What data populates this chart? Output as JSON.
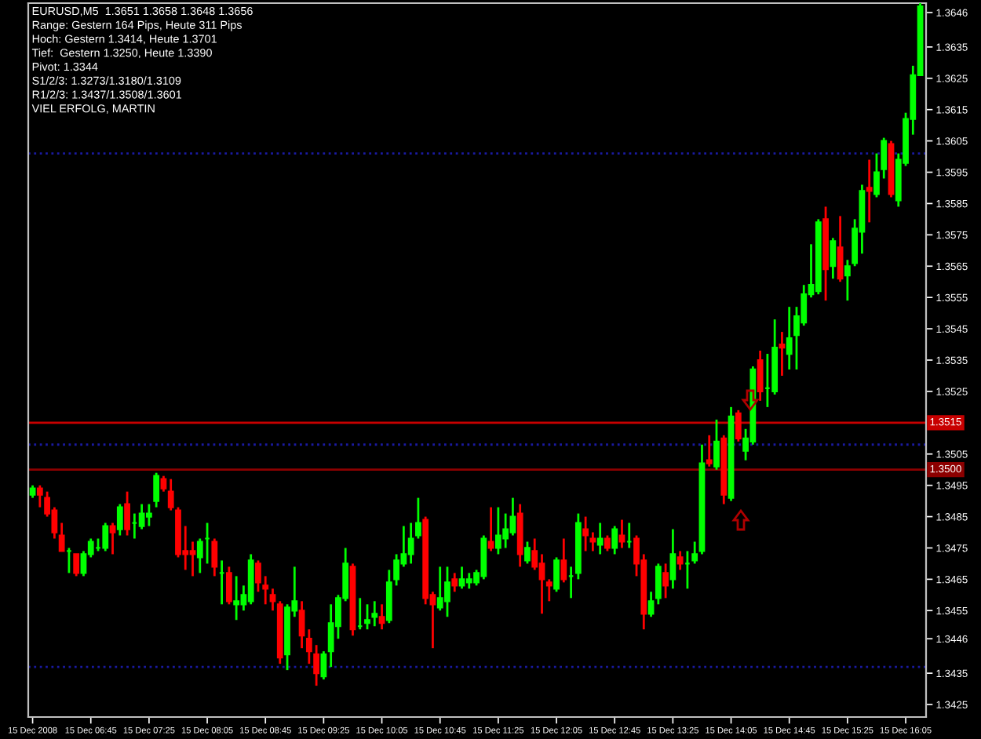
{
  "chart_data": {
    "type": "candlestick",
    "title": "EURUSD,M5  1.3651 1.3658 1.3648 1.3656",
    "annotations": [
      "Range: Gestern 164 Pips, Heute 311 Pips",
      "Hoch: Gestern 1.3414, Heute 1.3701",
      "Tief:  Gestern 1.3250, Heute 1.3390",
      "Pivot: 1.3344",
      "S1/2/3: 1.3273/1.3180/1.3109",
      "R1/2/3: 1.3437/1.3508/1.3601",
      "VIEL ERFOLG, MARTIN"
    ],
    "x": [
      "2008-12-15T06:05",
      "2008-12-15T06:10",
      "2008-12-15T06:15",
      "2008-12-15T06:20",
      "2008-12-15T06:25",
      "2008-12-15T06:30",
      "2008-12-15T06:35",
      "2008-12-15T06:40",
      "2008-12-15T06:45",
      "2008-12-15T06:50",
      "2008-12-15T06:55",
      "2008-12-15T07:00",
      "2008-12-15T07:05",
      "2008-12-15T07:10",
      "2008-12-15T07:15",
      "2008-12-15T07:20",
      "2008-12-15T07:25",
      "2008-12-15T07:30",
      "2008-12-15T07:35",
      "2008-12-15T07:40",
      "2008-12-15T07:45",
      "2008-12-15T07:50",
      "2008-12-15T07:55",
      "2008-12-15T08:00",
      "2008-12-15T08:05",
      "2008-12-15T08:10",
      "2008-12-15T08:15",
      "2008-12-15T08:20",
      "2008-12-15T08:25",
      "2008-12-15T08:30",
      "2008-12-15T08:35",
      "2008-12-15T08:40",
      "2008-12-15T08:45",
      "2008-12-15T08:50",
      "2008-12-15T08:55",
      "2008-12-15T09:00",
      "2008-12-15T09:05",
      "2008-12-15T09:10",
      "2008-12-15T09:15",
      "2008-12-15T09:20",
      "2008-12-15T09:25",
      "2008-12-15T09:30",
      "2008-12-15T09:35",
      "2008-12-15T09:40",
      "2008-12-15T09:45",
      "2008-12-15T09:50",
      "2008-12-15T09:55",
      "2008-12-15T10:00",
      "2008-12-15T10:05",
      "2008-12-15T10:10",
      "2008-12-15T10:15",
      "2008-12-15T10:20",
      "2008-12-15T10:25",
      "2008-12-15T10:30",
      "2008-12-15T10:35",
      "2008-12-15T10:40",
      "2008-12-15T10:45",
      "2008-12-15T10:50",
      "2008-12-15T10:55",
      "2008-12-15T11:00",
      "2008-12-15T11:05",
      "2008-12-15T11:10",
      "2008-12-15T11:15",
      "2008-12-15T11:20",
      "2008-12-15T11:25",
      "2008-12-15T11:30",
      "2008-12-15T11:35",
      "2008-12-15T11:40",
      "2008-12-15T11:45",
      "2008-12-15T11:50",
      "2008-12-15T11:55",
      "2008-12-15T12:00",
      "2008-12-15T12:05",
      "2008-12-15T12:10",
      "2008-12-15T12:15",
      "2008-12-15T12:20",
      "2008-12-15T12:25",
      "2008-12-15T12:30",
      "2008-12-15T12:35",
      "2008-12-15T12:40",
      "2008-12-15T12:45",
      "2008-12-15T12:50",
      "2008-12-15T12:55",
      "2008-12-15T13:00",
      "2008-12-15T13:05",
      "2008-12-15T13:10",
      "2008-12-15T13:15",
      "2008-12-15T13:20",
      "2008-12-15T13:25",
      "2008-12-15T13:30",
      "2008-12-15T13:35",
      "2008-12-15T13:40",
      "2008-12-15T13:45",
      "2008-12-15T13:50",
      "2008-12-15T13:55",
      "2008-12-15T14:00",
      "2008-12-15T14:05",
      "2008-12-15T14:10",
      "2008-12-15T14:15",
      "2008-12-15T14:20",
      "2008-12-15T14:25",
      "2008-12-15T14:30",
      "2008-12-15T14:35",
      "2008-12-15T14:40",
      "2008-12-15T14:45",
      "2008-12-15T14:50",
      "2008-12-15T14:55",
      "2008-12-15T15:00",
      "2008-12-15T15:05",
      "2008-12-15T15:10",
      "2008-12-15T15:15",
      "2008-12-15T15:20",
      "2008-12-15T15:25",
      "2008-12-15T15:30",
      "2008-12-15T15:35",
      "2008-12-15T15:40",
      "2008-12-15T15:45",
      "2008-12-15T15:50",
      "2008-12-15T15:55",
      "2008-12-15T16:00",
      "2008-12-15T16:05",
      "2008-12-15T16:10",
      "2008-12-15T16:15"
    ],
    "ohlc": [
      [
        1.3492,
        1.3495,
        1.3491,
        1.3494
      ],
      [
        1.3494,
        1.3495,
        1.3488,
        1.3492
      ],
      [
        1.3491,
        1.3493,
        1.3485,
        1.3486
      ],
      [
        1.3487,
        1.3488,
        1.3478,
        1.348
      ],
      [
        1.3479,
        1.3483,
        1.3474,
        1.3474
      ],
      [
        1.3474,
        1.3475,
        1.3467,
        1.3474
      ],
      [
        1.3473,
        1.3473,
        1.3466,
        1.3467
      ],
      [
        1.3467,
        1.3474,
        1.3466,
        1.3473
      ],
      [
        1.3473,
        1.3478,
        1.3472,
        1.3477
      ],
      [
        1.3475,
        1.3478,
        1.3474,
        1.3475
      ],
      [
        1.3475,
        1.3483,
        1.3474,
        1.3482
      ],
      [
        1.3482,
        1.3483,
        1.3473,
        1.348
      ],
      [
        1.3481,
        1.3489,
        1.3479,
        1.3488
      ],
      [
        1.3489,
        1.3493,
        1.3479,
        1.3481
      ],
      [
        1.3483,
        1.3486,
        1.3478,
        1.3483
      ],
      [
        1.3482,
        1.3489,
        1.3481,
        1.3486
      ],
      [
        1.3485,
        1.3489,
        1.3482,
        1.3486
      ],
      [
        1.349,
        1.3499,
        1.3488,
        1.3498
      ],
      [
        1.3497,
        1.3498,
        1.3493,
        1.3494
      ],
      [
        1.3493,
        1.3497,
        1.3487,
        1.3488
      ],
      [
        1.3487,
        1.3488,
        1.3472,
        1.3473
      ],
      [
        1.3474,
        1.3482,
        1.3468,
        1.3473
      ],
      [
        1.3474,
        1.3477,
        1.3466,
        1.3473
      ],
      [
        1.3472,
        1.3478,
        1.3467,
        1.3477
      ],
      [
        1.3478,
        1.3483,
        1.347,
        1.3478
      ],
      [
        1.3477,
        1.3478,
        1.3466,
        1.3469
      ],
      [
        1.3467,
        1.3471,
        1.3457,
        1.3467
      ],
      [
        1.3467,
        1.3469,
        1.3457,
        1.3458
      ],
      [
        1.3457,
        1.3466,
        1.3452,
        1.3458
      ],
      [
        1.3457,
        1.3463,
        1.3455,
        1.346
      ],
      [
        1.3458,
        1.3473,
        1.3457,
        1.3471
      ],
      [
        1.347,
        1.3471,
        1.3461,
        1.3464
      ],
      [
        1.3463,
        1.3466,
        1.3457,
        1.3462
      ],
      [
        1.346,
        1.3462,
        1.3455,
        1.3458
      ],
      [
        1.3457,
        1.3458,
        1.3438,
        1.344
      ],
      [
        1.3441,
        1.3457,
        1.3436,
        1.3456
      ],
      [
        1.3455,
        1.3469,
        1.3453,
        1.3458
      ],
      [
        1.3455,
        1.3458,
        1.3443,
        1.3447
      ],
      [
        1.3446,
        1.3449,
        1.3438,
        1.3442
      ],
      [
        1.3441,
        1.3444,
        1.3431,
        1.3435
      ],
      [
        1.3434,
        1.3442,
        1.3433,
        1.3441
      ],
      [
        1.3442,
        1.3457,
        1.3437,
        1.3451
      ],
      [
        1.345,
        1.346,
        1.3446,
        1.3459
      ],
      [
        1.3459,
        1.3475,
        1.3458,
        1.347
      ],
      [
        1.3469,
        1.347,
        1.3447,
        1.3449
      ],
      [
        1.345,
        1.3459,
        1.3449,
        1.345
      ],
      [
        1.3451,
        1.3457,
        1.3449,
        1.3452
      ],
      [
        1.3453,
        1.3458,
        1.345,
        1.3454
      ],
      [
        1.3453,
        1.3457,
        1.3449,
        1.3451
      ],
      [
        1.3452,
        1.3468,
        1.3451,
        1.3464
      ],
      [
        1.3465,
        1.3473,
        1.3463,
        1.3471
      ],
      [
        1.347,
        1.3482,
        1.3469,
        1.3473
      ],
      [
        1.3473,
        1.3483,
        1.347,
        1.3478
      ],
      [
        1.3479,
        1.3491,
        1.3478,
        1.3483
      ],
      [
        1.3484,
        1.3485,
        1.3457,
        1.3459
      ],
      [
        1.346,
        1.3461,
        1.3443,
        1.3457
      ],
      [
        1.3456,
        1.3469,
        1.3455,
        1.3459
      ],
      [
        1.3458,
        1.3469,
        1.3453,
        1.3464
      ],
      [
        1.3465,
        1.3467,
        1.3461,
        1.3463
      ],
      [
        1.3463,
        1.3469,
        1.3462,
        1.3465
      ],
      [
        1.3464,
        1.3467,
        1.3462,
        1.3465
      ],
      [
        1.3464,
        1.3468,
        1.3463,
        1.3467
      ],
      [
        1.3466,
        1.3479,
        1.3465,
        1.3478
      ],
      [
        1.3477,
        1.3488,
        1.3474,
        1.3475
      ],
      [
        1.3475,
        1.3488,
        1.3473,
        1.3479
      ],
      [
        1.3478,
        1.3486,
        1.3475,
        1.3481
      ],
      [
        1.348,
        1.3491,
        1.3479,
        1.3485
      ],
      [
        1.3486,
        1.3489,
        1.3469,
        1.3473
      ],
      [
        1.3471,
        1.3477,
        1.347,
        1.3475
      ],
      [
        1.3474,
        1.3478,
        1.3468,
        1.3469
      ],
      [
        1.347,
        1.3473,
        1.3454,
        1.3465
      ],
      [
        1.3464,
        1.3465,
        1.3458,
        1.3463
      ],
      [
        1.3462,
        1.3472,
        1.3461,
        1.3471
      ],
      [
        1.3471,
        1.3478,
        1.3464,
        1.3465
      ],
      [
        1.3466,
        1.3469,
        1.3459,
        1.3466
      ],
      [
        1.3467,
        1.3486,
        1.3465,
        1.3483
      ],
      [
        1.3481,
        1.3485,
        1.3474,
        1.3479
      ],
      [
        1.3478,
        1.348,
        1.3474,
        1.3477
      ],
      [
        1.3476,
        1.3483,
        1.3473,
        1.3478
      ],
      [
        1.3478,
        1.3479,
        1.3474,
        1.3475
      ],
      [
        1.3475,
        1.3482,
        1.3473,
        1.3481
      ],
      [
        1.3479,
        1.3484,
        1.3475,
        1.3477
      ],
      [
        1.3477,
        1.3483,
        1.3475,
        1.3477
      ],
      [
        1.3478,
        1.3479,
        1.3466,
        1.347
      ],
      [
        1.3471,
        1.3473,
        1.3449,
        1.3454
      ],
      [
        1.3454,
        1.3461,
        1.3453,
        1.3458
      ],
      [
        1.3459,
        1.347,
        1.3457,
        1.3469
      ],
      [
        1.3467,
        1.347,
        1.3459,
        1.3463
      ],
      [
        1.3465,
        1.3481,
        1.3462,
        1.3473
      ],
      [
        1.3472,
        1.3474,
        1.3468,
        1.347
      ],
      [
        1.347,
        1.3474,
        1.3462,
        1.347
      ],
      [
        1.3471,
        1.3477,
        1.347,
        1.3473
      ],
      [
        1.3474,
        1.3508,
        1.3473,
        1.3502
      ],
      [
        1.3503,
        1.3511,
        1.3501,
        1.3502
      ],
      [
        1.3501,
        1.3516,
        1.35,
        1.3509
      ],
      [
        1.351,
        1.3511,
        1.3489,
        1.3492
      ],
      [
        1.3491,
        1.352,
        1.349,
        1.3517
      ],
      [
        1.3518,
        1.3519,
        1.3509,
        1.351
      ],
      [
        1.3506,
        1.3513,
        1.3503,
        1.351
      ],
      [
        1.3509,
        1.3533,
        1.3508,
        1.3532
      ],
      [
        1.3535,
        1.3538,
        1.3522,
        1.3525
      ],
      [
        1.3526,
        1.3537,
        1.352,
        1.3526
      ],
      [
        1.3525,
        1.3548,
        1.3524,
        1.3539
      ],
      [
        1.354,
        1.3544,
        1.353,
        1.3539
      ],
      [
        1.3537,
        1.3552,
        1.3532,
        1.3542
      ],
      [
        1.3543,
        1.3552,
        1.3532,
        1.3549
      ],
      [
        1.3547,
        1.3559,
        1.3546,
        1.3556
      ],
      [
        1.3556,
        1.3572,
        1.3555,
        1.3559
      ],
      [
        1.3557,
        1.358,
        1.3556,
        1.3579
      ],
      [
        1.358,
        1.3584,
        1.3554,
        1.3564
      ],
      [
        1.3565,
        1.3574,
        1.3561,
        1.3573
      ],
      [
        1.3571,
        1.3581,
        1.356,
        1.3561
      ],
      [
        1.3562,
        1.3567,
        1.3554,
        1.3565
      ],
      [
        1.3566,
        1.358,
        1.3565,
        1.3577
      ],
      [
        1.3576,
        1.3591,
        1.3569,
        1.3589
      ],
      [
        1.359,
        1.3599,
        1.3579,
        1.3589
      ],
      [
        1.3588,
        1.3601,
        1.3587,
        1.3595
      ],
      [
        1.3596,
        1.3606,
        1.3593,
        1.3605
      ],
      [
        1.3604,
        1.3605,
        1.3587,
        1.3588
      ],
      [
        1.3586,
        1.3601,
        1.3584,
        1.3599
      ],
      [
        1.3598,
        1.3614,
        1.3597,
        1.3612
      ],
      [
        1.3612,
        1.3629,
        1.3607,
        1.3626
      ],
      [
        1.3626,
        1.3649,
        1.3626,
        1.3648
      ]
    ],
    "colors": [
      "#00ff00",
      "#ff0000",
      "#ff0000",
      "#ff0000",
      "#ff0000",
      "#00ff00",
      "#ff0000",
      "#00ff00",
      "#00ff00",
      "#00ff00",
      "#00ff00",
      "#ff0000",
      "#00ff00",
      "#ff0000",
      "#00ff00",
      "#00ff00",
      "#00ff00",
      "#00ff00",
      "#ff0000",
      "#ff0000",
      "#ff0000",
      "#ff0000",
      "#ff0000",
      "#00ff00",
      "#00ff00",
      "#ff0000",
      "#00ff00",
      "#ff0000",
      "#00ff00",
      "#00ff00",
      "#00ff00",
      "#ff0000",
      "#ff0000",
      "#ff0000",
      "#ff0000",
      "#00ff00",
      "#00ff00",
      "#ff0000",
      "#ff0000",
      "#ff0000",
      "#00ff00",
      "#00ff00",
      "#00ff00",
      "#00ff00",
      "#ff0000",
      "#00ff00",
      "#00ff00",
      "#00ff00",
      "#ff0000",
      "#00ff00",
      "#00ff00",
      "#00ff00",
      "#00ff00",
      "#00ff00",
      "#ff0000",
      "#ff0000",
      "#00ff00",
      "#00ff00",
      "#ff0000",
      "#00ff00",
      "#00ff00",
      "#00ff00",
      "#00ff00",
      "#ff0000",
      "#00ff00",
      "#00ff00",
      "#00ff00",
      "#ff0000",
      "#00ff00",
      "#ff0000",
      "#ff0000",
      "#ff0000",
      "#00ff00",
      "#ff0000",
      "#00ff00",
      "#00ff00",
      "#ff0000",
      "#ff0000",
      "#00ff00",
      "#ff0000",
      "#00ff00",
      "#ff0000",
      "#00ff00",
      "#ff0000",
      "#ff0000",
      "#00ff00",
      "#00ff00",
      "#ff0000",
      "#00ff00",
      "#ff0000",
      "#00ff00",
      "#00ff00",
      "#00ff00",
      "#ff0000",
      "#00ff00",
      "#ff0000",
      "#00ff00",
      "#ff0000",
      "#00ff00",
      "#00ff00",
      "#ff0000",
      "#00ff00",
      "#00ff00",
      "#ff0000",
      "#00ff00",
      "#00ff00",
      "#00ff00",
      "#00ff00",
      "#00ff00",
      "#ff0000",
      "#00ff00",
      "#ff0000",
      "#00ff00",
      "#00ff00",
      "#00ff00",
      "#ff0000",
      "#00ff00",
      "#00ff00",
      "#ff0000",
      "#00ff00",
      "#00ff00",
      "#00ff00",
      "#00ff00"
    ],
    "xlim": [
      "2008-12-15T06:02",
      "2008-12-15T16:19"
    ],
    "xticks": [
      {
        "value": "2008-12-15T06:05",
        "label": "15 Dec 2008"
      },
      {
        "value": "2008-12-15T06:45",
        "label": "15 Dec 06:45"
      },
      {
        "value": "2008-12-15T07:25",
        "label": "15 Dec 07:25"
      },
      {
        "value": "2008-12-15T08:05",
        "label": "15 Dec 08:05"
      },
      {
        "value": "2008-12-15T08:45",
        "label": "15 Dec 08:45"
      },
      {
        "value": "2008-12-15T09:25",
        "label": "15 Dec 09:25"
      },
      {
        "value": "2008-12-15T10:05",
        "label": "15 Dec 10:05"
      },
      {
        "value": "2008-12-15T10:45",
        "label": "15 Dec 10:45"
      },
      {
        "value": "2008-12-15T11:25",
        "label": "15 Dec 11:25"
      },
      {
        "value": "2008-12-15T12:05",
        "label": "15 Dec 12:05"
      },
      {
        "value": "2008-12-15T12:45",
        "label": "15 Dec 12:45"
      },
      {
        "value": "2008-12-15T13:25",
        "label": "15 Dec 13:25"
      },
      {
        "value": "2008-12-15T14:05",
        "label": "15 Dec 14:05"
      },
      {
        "value": "2008-12-15T14:45",
        "label": "15 Dec 14:45"
      },
      {
        "value": "2008-12-15T15:25",
        "label": "15 Dec 15:25"
      },
      {
        "value": "2008-12-15T16:05",
        "label": "15 Dec 16:05"
      }
    ],
    "ylim": [
      1.3421,
      1.3649
    ],
    "yticks": [
      1.3646,
      1.3635,
      1.3625,
      1.3615,
      1.3605,
      1.3595,
      1.3585,
      1.3575,
      1.3565,
      1.3555,
      1.3545,
      1.3535,
      1.3525,
      1.3505,
      1.3495,
      1.3485,
      1.3475,
      1.3465,
      1.3455,
      1.3446,
      1.3435,
      1.3425
    ],
    "ref_lines": [
      {
        "axis": "y",
        "value": 1.3515,
        "label": "1.3515",
        "color": "#c80000",
        "line_style": "solid"
      },
      {
        "axis": "y",
        "value": 1.35,
        "label": "1.3500",
        "color": "#8c0000",
        "line_style": "solid"
      },
      {
        "axis": "y",
        "value": 1.3601,
        "color": "#1a1aa0",
        "line_style": "dotted"
      },
      {
        "axis": "y",
        "value": 1.3508,
        "color": "#1a1aa0",
        "line_style": "dotted"
      },
      {
        "axis": "y",
        "value": 1.3437,
        "color": "#1a1aa0",
        "line_style": "dotted"
      }
    ]
  }
}
